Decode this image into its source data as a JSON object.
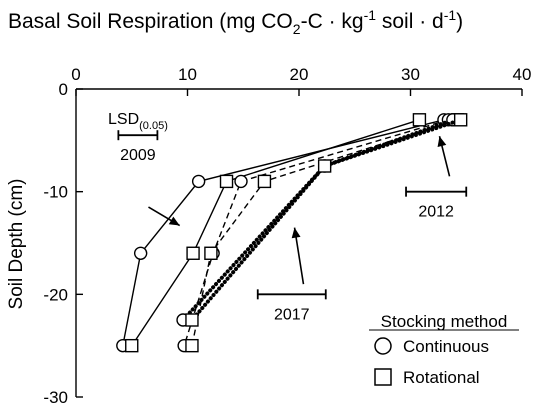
{
  "chart_data": {
    "type": "line",
    "title_parts": {
      "lead": "Basal Soil Respiration (mg CO",
      "sub1": "2",
      "mid": "-C · kg",
      "sup1": "-1",
      "mid2": " soil · d",
      "sup2": "-1",
      "tail": ")"
    },
    "ylabel": "Soil Depth (cm)",
    "xlim": [
      0,
      40
    ],
    "ylim": [
      -30,
      0
    ],
    "x_ticks": [
      0,
      10,
      20,
      30,
      40
    ],
    "x_tick_labels": [
      "0",
      "10",
      "20",
      "30",
      "40"
    ],
    "y_ticks": [
      0,
      -10,
      -20,
      -30
    ],
    "y_tick_labels": [
      "0",
      "-10",
      "-20",
      "-30"
    ],
    "grid": false,
    "series": [
      {
        "year": "2009",
        "method": "Continuous",
        "marker": "circle",
        "style": "solid",
        "points": [
          [
            33.0,
            -3
          ],
          [
            11.0,
            -9
          ],
          [
            5.8,
            -16
          ],
          [
            4.2,
            -25
          ]
        ]
      },
      {
        "year": "2009",
        "method": "Rotational",
        "marker": "square",
        "style": "solid",
        "points": [
          [
            30.8,
            -3
          ],
          [
            13.5,
            -9
          ],
          [
            10.5,
            -16
          ],
          [
            5.0,
            -25
          ]
        ]
      },
      {
        "year": "2012",
        "method": "Continuous",
        "marker": "circle",
        "style": "dashed",
        "points": [
          [
            33.4,
            -3
          ],
          [
            14.8,
            -9
          ],
          [
            12.3,
            -16
          ],
          [
            9.7,
            -25
          ]
        ]
      },
      {
        "year": "2012",
        "method": "Rotational",
        "marker": "square",
        "style": "dashed",
        "points": [
          [
            34.2,
            -3
          ],
          [
            16.9,
            -9
          ],
          [
            12.1,
            -16
          ],
          [
            10.4,
            -25
          ]
        ]
      },
      {
        "year": "2017",
        "method": "Continuous",
        "marker": "circle",
        "style": "dotted",
        "points": [
          [
            33.8,
            -3
          ],
          [
            22.3,
            -7.5
          ],
          [
            9.6,
            -22.5
          ]
        ]
      },
      {
        "year": "2017",
        "method": "Rotational",
        "marker": "square",
        "style": "dotted",
        "points": [
          [
            34.5,
            -3
          ],
          [
            22.3,
            -7.5
          ],
          [
            10.4,
            -22.5
          ]
        ]
      }
    ],
    "lsd_label": {
      "main": "LSD",
      "sub": "(0.05)"
    },
    "lsd_bars": [
      {
        "label": "2009",
        "x0": 3.8,
        "x1": 7.3,
        "y": -4.5
      },
      {
        "label": "2012",
        "x0": 29.6,
        "x1": 35.0,
        "y": -10.0
      },
      {
        "label": "2017",
        "x0": 16.3,
        "x1": 22.4,
        "y": -20.0
      }
    ],
    "annotations": [
      {
        "text": "2009",
        "arrow_from": [
          6.5,
          -11.5
        ],
        "arrow_to": [
          9.3,
          -13.3
        ]
      },
      {
        "text": "2012",
        "arrow_from": [
          33.5,
          -8.5
        ],
        "arrow_to": [
          32.6,
          -4.6
        ]
      },
      {
        "text": "2017",
        "arrow_from": [
          20.4,
          -19.0
        ],
        "arrow_to": [
          19.6,
          -13.5
        ]
      }
    ],
    "legend": {
      "title": "Stocking method",
      "placement": "bottom-right",
      "items": [
        {
          "label": "Continuous",
          "marker": "circle"
        },
        {
          "label": "Rotational",
          "marker": "square"
        }
      ]
    }
  }
}
